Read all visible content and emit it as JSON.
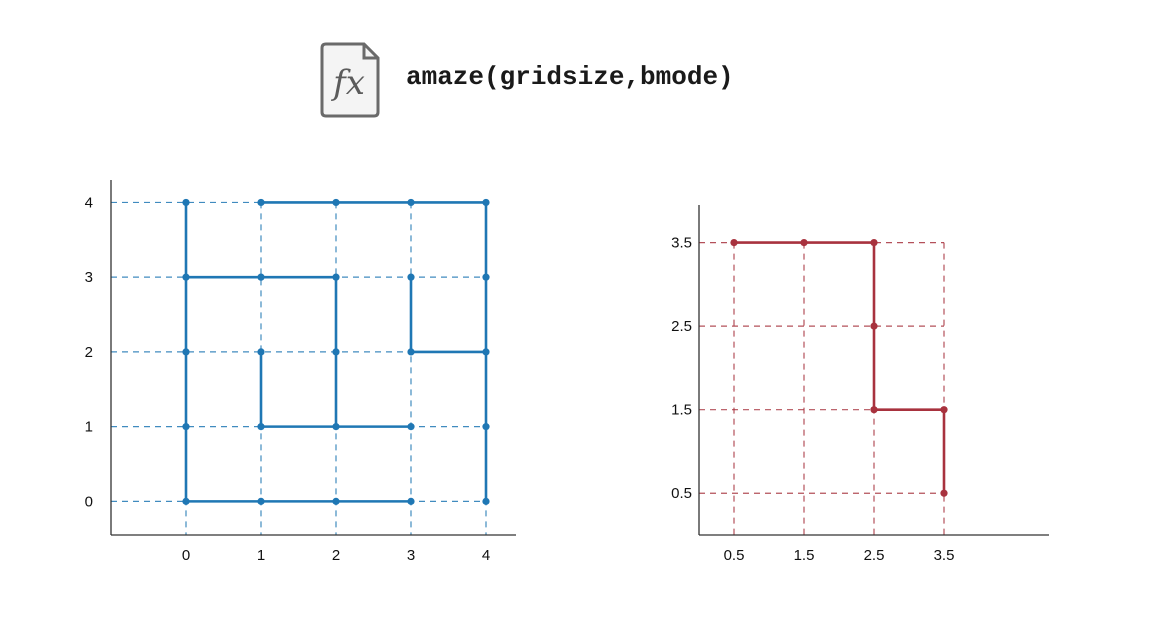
{
  "header": {
    "icon": "function-fx-icon",
    "icon_text": "fx",
    "signature": "amaze(gridsize,bmode)"
  },
  "colors": {
    "left_maze": "#1f77b4",
    "right_maze": "#a8323e",
    "axis": "#333333"
  },
  "chart_data": [
    {
      "type": "line",
      "x_ticks": [
        "0",
        "1",
        "2",
        "3",
        "4"
      ],
      "y_ticks": [
        "0",
        "1",
        "2",
        "3",
        "4"
      ],
      "xlim": [
        -1,
        4.4
      ],
      "ylim": [
        -0.45,
        4.3
      ],
      "grid": "dashed",
      "nodes": [
        [
          0,
          0
        ],
        [
          1,
          0
        ],
        [
          2,
          0
        ],
        [
          3,
          0
        ],
        [
          4,
          0
        ],
        [
          0,
          1
        ],
        [
          1,
          1
        ],
        [
          2,
          1
        ],
        [
          3,
          1
        ],
        [
          4,
          1
        ],
        [
          0,
          2
        ],
        [
          1,
          2
        ],
        [
          2,
          2
        ],
        [
          3,
          2
        ],
        [
          4,
          2
        ],
        [
          0,
          3
        ],
        [
          1,
          3
        ],
        [
          2,
          3
        ],
        [
          3,
          3
        ],
        [
          4,
          3
        ],
        [
          0,
          4
        ],
        [
          1,
          4
        ],
        [
          2,
          4
        ],
        [
          3,
          4
        ],
        [
          4,
          4
        ]
      ],
      "segments": [
        [
          [
            0,
            0
          ],
          [
            0,
            4
          ]
        ],
        [
          [
            0,
            0
          ],
          [
            3,
            0
          ]
        ],
        [
          [
            0,
            3
          ],
          [
            2,
            3
          ]
        ],
        [
          [
            2,
            3
          ],
          [
            2,
            1
          ]
        ],
        [
          [
            1,
            1
          ],
          [
            3,
            1
          ]
        ],
        [
          [
            1,
            2
          ],
          [
            1,
            1
          ]
        ],
        [
          [
            1,
            4
          ],
          [
            4,
            4
          ]
        ],
        [
          [
            4,
            4
          ],
          [
            4,
            0
          ]
        ],
        [
          [
            3,
            3
          ],
          [
            3,
            2
          ]
        ],
        [
          [
            3,
            2
          ],
          [
            4,
            2
          ]
        ]
      ]
    },
    {
      "type": "line",
      "x_ticks": [
        "0.5",
        "1.5",
        "2.5",
        "3.5"
      ],
      "y_ticks": [
        "0.5",
        "1.5",
        "2.5",
        "3.5"
      ],
      "xlim": [
        0,
        5
      ],
      "ylim": [
        0,
        3.95
      ],
      "grid": "dashed",
      "nodes": [
        [
          0.5,
          3.5
        ],
        [
          1.5,
          3.5
        ],
        [
          2.5,
          3.5
        ],
        [
          2.5,
          2.5
        ],
        [
          2.5,
          1.5
        ],
        [
          3.5,
          1.5
        ],
        [
          3.5,
          0.5
        ]
      ],
      "segments": [
        [
          [
            0.5,
            3.5
          ],
          [
            2.5,
            3.5
          ]
        ],
        [
          [
            2.5,
            3.5
          ],
          [
            2.5,
            1.5
          ]
        ],
        [
          [
            2.5,
            1.5
          ],
          [
            3.5,
            1.5
          ]
        ],
        [
          [
            3.5,
            1.5
          ],
          [
            3.5,
            0.5
          ]
        ]
      ]
    }
  ]
}
